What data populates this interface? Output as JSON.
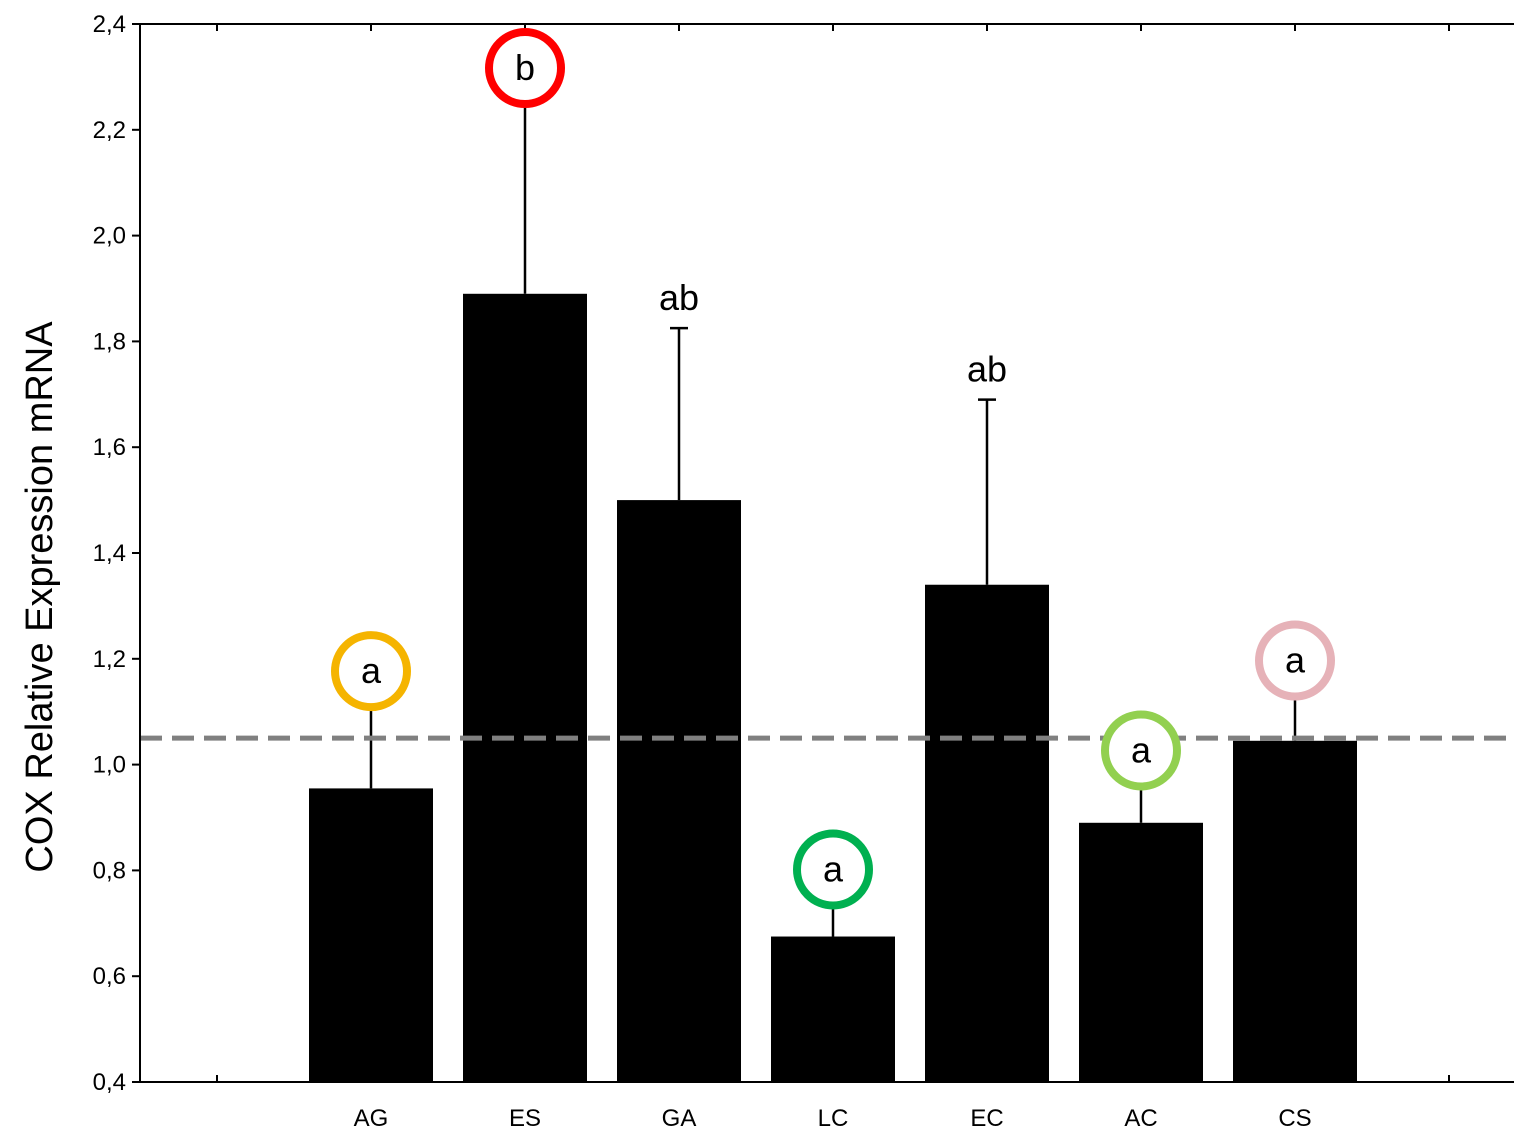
{
  "chart_data": {
    "type": "bar",
    "title": "",
    "xlabel": "",
    "ylabel": "COX Relative Expression mRNA",
    "ylim": [
      0.4,
      2.4
    ],
    "yticks": [
      "0,4",
      "0,6",
      "0,8",
      "1,0",
      "1,2",
      "1,4",
      "1,6",
      "1,8",
      "2,0",
      "2,2",
      "2,4"
    ],
    "ytick_values": [
      0.4,
      0.6,
      0.8,
      1.0,
      1.2,
      1.4,
      1.6,
      1.8,
      2.0,
      2.2,
      2.4
    ],
    "categories": [
      "AG",
      "ES",
      "GA",
      "LC",
      "EC",
      "AC",
      "CS"
    ],
    "values": [
      0.955,
      1.89,
      1.5,
      0.675,
      1.34,
      0.89,
      1.045
    ],
    "error_upper": [
      1.12,
      2.26,
      1.825,
      0.745,
      1.69,
      0.97,
      1.14
    ],
    "significance_labels": [
      "a",
      "b",
      "ab",
      "a",
      "ab",
      "a",
      "a"
    ],
    "label_circle_colors": [
      "#f5b400",
      "#ff0000",
      null,
      "#00b050",
      null,
      "#92d050",
      "#e6b2b8"
    ],
    "reference_line": {
      "value": 1.05,
      "style": "dashed",
      "color": "#808080"
    },
    "bar_color": "#000000",
    "grid": false,
    "legend": "none"
  }
}
